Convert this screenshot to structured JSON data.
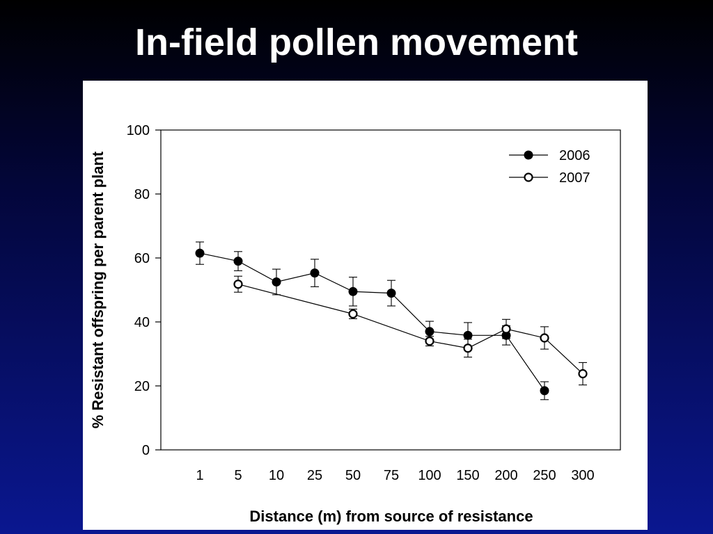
{
  "slide": {
    "title": "In-field pollen movement"
  },
  "chart_data": {
    "type": "line",
    "title": "",
    "xlabel": "Distance (m) from source of resistance",
    "ylabel": "% Resistant offspring per parent plant",
    "categories": [
      "1",
      "5",
      "10",
      "25",
      "50",
      "75",
      "100",
      "150",
      "200",
      "250",
      "300"
    ],
    "ylim": [
      0,
      100
    ],
    "yticks": [
      0,
      20,
      40,
      60,
      80,
      100
    ],
    "legend_position": "top-right",
    "grid": false,
    "series": [
      {
        "name": "2006",
        "marker": "filled-circle",
        "values": [
          61.5,
          59.0,
          52.5,
          55.3,
          49.5,
          49.0,
          37.0,
          35.8,
          35.8,
          18.5,
          null
        ],
        "errors": [
          3.5,
          3.0,
          4.0,
          4.3,
          4.5,
          4.0,
          3.2,
          4.0,
          3.0,
          2.8,
          null
        ]
      },
      {
        "name": "2007",
        "marker": "open-circle",
        "values": [
          null,
          51.8,
          null,
          null,
          42.5,
          null,
          34.0,
          31.8,
          37.8,
          35.0,
          23.8
        ],
        "errors": [
          null,
          2.5,
          null,
          null,
          1.5,
          null,
          1.5,
          2.8,
          3.0,
          3.5,
          3.5
        ]
      }
    ]
  }
}
